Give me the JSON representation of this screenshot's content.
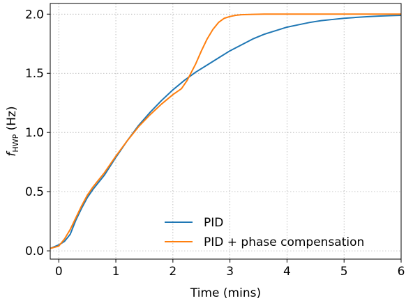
{
  "chart_data": {
    "type": "line",
    "xlabel": "Time (mins)",
    "ylabel": {
      "main": "f",
      "sub": "HWP",
      "unit": " (Hz)"
    },
    "xlim": [
      -0.15,
      6.0
    ],
    "ylim": [
      -0.07,
      2.09
    ],
    "xticks": [
      0,
      1,
      2,
      3,
      4,
      5,
      6
    ],
    "xtick_labels": [
      "0",
      "1",
      "2",
      "3",
      "4",
      "5",
      "6"
    ],
    "yticks": [
      0.0,
      0.5,
      1.0,
      1.5,
      2.0
    ],
    "ytick_labels": [
      "0.0",
      "0.5",
      "1.0",
      "1.5",
      "2.0"
    ],
    "grid": true,
    "legend_position": "lower-right",
    "series": [
      {
        "name": "PID",
        "color": "#1f77b4",
        "x": [
          -0.15,
          0.0,
          0.1,
          0.2,
          0.3,
          0.4,
          0.5,
          0.6,
          0.8,
          1.0,
          1.2,
          1.4,
          1.6,
          1.8,
          2.0,
          2.2,
          2.4,
          2.6,
          2.8,
          3.0,
          3.2,
          3.4,
          3.6,
          3.8,
          4.0,
          4.2,
          4.4,
          4.6,
          4.8,
          5.0,
          5.2,
          5.4,
          5.6,
          5.8,
          6.0
        ],
        "y": [
          0.02,
          0.05,
          0.08,
          0.14,
          0.26,
          0.36,
          0.45,
          0.52,
          0.64,
          0.79,
          0.93,
          1.06,
          1.17,
          1.27,
          1.36,
          1.44,
          1.51,
          1.57,
          1.63,
          1.69,
          1.74,
          1.79,
          1.83,
          1.86,
          1.89,
          1.91,
          1.93,
          1.945,
          1.955,
          1.965,
          1.972,
          1.978,
          1.983,
          1.987,
          1.99
        ]
      },
      {
        "name": "PID + phase compensation",
        "color": "#ff7f0e",
        "x": [
          -0.15,
          0.0,
          0.1,
          0.2,
          0.3,
          0.4,
          0.5,
          0.6,
          0.8,
          1.0,
          1.2,
          1.4,
          1.6,
          1.8,
          2.0,
          2.15,
          2.25,
          2.4,
          2.5,
          2.6,
          2.7,
          2.8,
          2.9,
          3.0,
          3.1,
          3.2,
          3.4,
          3.6,
          3.8,
          4.0,
          4.5,
          5.0,
          5.5,
          6.0
        ],
        "y": [
          0.02,
          0.04,
          0.1,
          0.18,
          0.28,
          0.38,
          0.47,
          0.54,
          0.66,
          0.8,
          0.93,
          1.05,
          1.15,
          1.24,
          1.32,
          1.37,
          1.44,
          1.58,
          1.69,
          1.79,
          1.87,
          1.93,
          1.965,
          1.98,
          1.99,
          1.995,
          1.998,
          2.0,
          2.0,
          2.0,
          2.0,
          2.0,
          2.0,
          2.0
        ]
      }
    ]
  }
}
